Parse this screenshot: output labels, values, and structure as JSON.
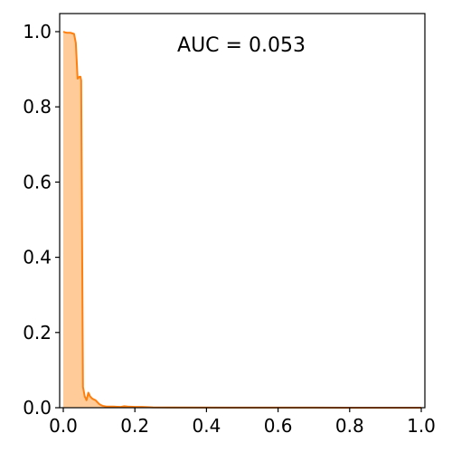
{
  "chart_data": {
    "type": "area",
    "annotation": "AUC = 0.053",
    "xlim": [
      0.0,
      1.0
    ],
    "ylim": [
      0.0,
      1.0
    ],
    "xticks": [
      0.0,
      0.2,
      0.4,
      0.6,
      0.8,
      1.0
    ],
    "yticks": [
      0.0,
      0.2,
      0.4,
      0.6,
      0.8,
      1.0
    ],
    "xtick_labels": [
      "0.0",
      "0.2",
      "0.4",
      "0.6",
      "0.8",
      "1.0"
    ],
    "ytick_labels": [
      "0.0",
      "0.2",
      "0.4",
      "0.6",
      "0.8",
      "1.0"
    ],
    "grid": false,
    "line_color": "#ff7f0e",
    "fill_color": "#ffcc99",
    "series": [
      {
        "x": [
          0.0,
          0.005,
          0.01,
          0.02,
          0.03,
          0.035,
          0.04,
          0.045,
          0.048,
          0.05,
          0.055,
          0.06,
          0.065,
          0.07,
          0.075,
          0.08,
          0.085,
          0.09,
          0.1,
          0.105,
          0.11,
          0.12,
          0.14,
          0.16,
          0.17,
          0.18,
          0.2,
          0.22,
          0.25,
          0.3,
          0.5,
          0.7,
          1.0
        ],
        "y": [
          1.0,
          0.998,
          0.997,
          0.997,
          0.994,
          0.97,
          0.875,
          0.88,
          0.88,
          0.87,
          0.055,
          0.03,
          0.02,
          0.04,
          0.03,
          0.025,
          0.022,
          0.02,
          0.01,
          0.007,
          0.005,
          0.003,
          0.003,
          0.002,
          0.004,
          0.003,
          0.002,
          0.002,
          0.001,
          0.0005,
          0.0003,
          0.0002,
          0.0
        ]
      }
    ]
  }
}
